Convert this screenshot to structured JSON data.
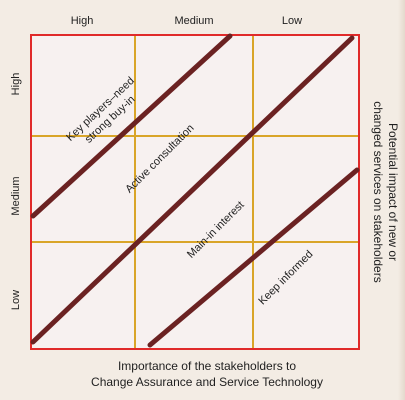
{
  "columns": [
    "High",
    "Medium",
    "Low"
  ],
  "rows": [
    "High",
    "Medium",
    "Low"
  ],
  "bands": [
    {
      "line1": "Key players–need",
      "line2": "strong buy-in"
    },
    {
      "line1": "Active consultation",
      "line2": ""
    },
    {
      "line1": "Main-in interest",
      "line2": ""
    },
    {
      "line1": "Keep informed",
      "line2": ""
    }
  ],
  "x_axis_label": {
    "line1": "Importance of the stakeholders to",
    "line2": "Change Assurance and Service Technology"
  },
  "y_axis_label": {
    "line1": "Potential impact of new or",
    "line2": "changed services on stakeholders"
  },
  "colors": {
    "frame": "#e02a2a",
    "gridlines": "#d9a528",
    "diagonals": "#6b2222",
    "background": "#f7f1f0"
  }
}
